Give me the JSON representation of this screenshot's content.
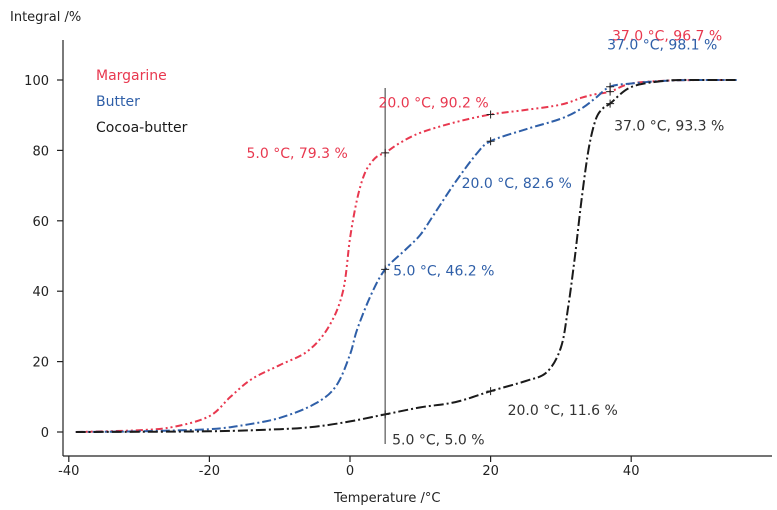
{
  "chart_data": {
    "type": "line",
    "xlabel": "Temperature /°C",
    "ylabel": "Integral /%",
    "xlim": [
      -40,
      60
    ],
    "ylim": [
      0,
      110
    ],
    "x_ticks": [
      -40,
      -20,
      0,
      20,
      40
    ],
    "y_ticks": [
      0,
      20,
      40,
      60,
      80,
      100
    ],
    "grid": false,
    "legend_position": "top-left",
    "marker_line_x": 5,
    "colors": {
      "Margarine": "#e8384f",
      "Butter": "#2f5fa8",
      "Cocoa-butter": "#1a1a1a"
    },
    "series": [
      {
        "name": "Margarine",
        "x": [
          -39,
          -30,
          -25,
          -20,
          -17,
          -14,
          -10,
          -6,
          -3,
          -1,
          0,
          1,
          2,
          3,
          4,
          5,
          7,
          10,
          15,
          20,
          25,
          30,
          33,
          35,
          37,
          40,
          45,
          50,
          55
        ],
        "y": [
          0,
          0.5,
          1.5,
          4.5,
          10,
          15,
          19,
          23,
          30,
          40,
          55,
          66,
          73,
          76.5,
          78.5,
          79.3,
          82,
          85,
          88,
          90.2,
          91.5,
          93,
          95,
          96,
          96.7,
          99,
          99.8,
          100,
          100
        ]
      },
      {
        "name": "Butter",
        "x": [
          -39,
          -30,
          -20,
          -15,
          -10,
          -5,
          -2,
          0,
          1,
          3,
          5,
          8,
          10,
          12,
          15,
          18,
          20,
          25,
          30,
          33,
          35,
          37,
          40,
          45,
          50,
          55
        ],
        "y": [
          0,
          0.2,
          0.8,
          2,
          4,
          8,
          13,
          22,
          29,
          39,
          46.2,
          52,
          56,
          62,
          71,
          79,
          82.6,
          86,
          89,
          92,
          95,
          98.1,
          99,
          99.8,
          100,
          100
        ]
      },
      {
        "name": "Cocoa-butter",
        "x": [
          -39,
          -20,
          -10,
          -5,
          0,
          5,
          10,
          15,
          20,
          25,
          28,
          30,
          31,
          32,
          33,
          34,
          35,
          36,
          37,
          40,
          45,
          50,
          55
        ],
        "y": [
          0,
          0.2,
          0.8,
          1.5,
          3,
          5,
          7,
          8.5,
          11.6,
          14.5,
          17,
          24,
          35,
          50,
          67,
          81,
          89,
          92,
          93.3,
          98,
          99.8,
          100,
          100
        ]
      }
    ],
    "annotations": [
      {
        "series": "Margarine",
        "x": 5,
        "y": 79.3,
        "text": "5.0 °C, 79.3 %"
      },
      {
        "series": "Margarine",
        "x": 20,
        "y": 90.2,
        "text": "20.0 °C, 90.2 %"
      },
      {
        "series": "Margarine",
        "x": 37,
        "y": 96.7,
        "text": "37.0 °C, 96.7 %"
      },
      {
        "series": "Butter",
        "x": 5,
        "y": 46.2,
        "text": "5.0 °C, 46.2 %"
      },
      {
        "series": "Butter",
        "x": 20,
        "y": 82.6,
        "text": "20.0 °C, 82.6 %"
      },
      {
        "series": "Butter",
        "x": 37,
        "y": 98.1,
        "text": "37.0 °C, 98.1 %"
      },
      {
        "series": "Cocoa-butter",
        "x": 5,
        "y": 5.0,
        "text": "5.0 °C, 5.0 %"
      },
      {
        "series": "Cocoa-butter",
        "x": 20,
        "y": 11.6,
        "text": "20.0 °C, 11.6 %"
      },
      {
        "series": "Cocoa-butter",
        "x": 37,
        "y": 93.3,
        "text": "37.0 °C, 93.3 %"
      }
    ]
  }
}
